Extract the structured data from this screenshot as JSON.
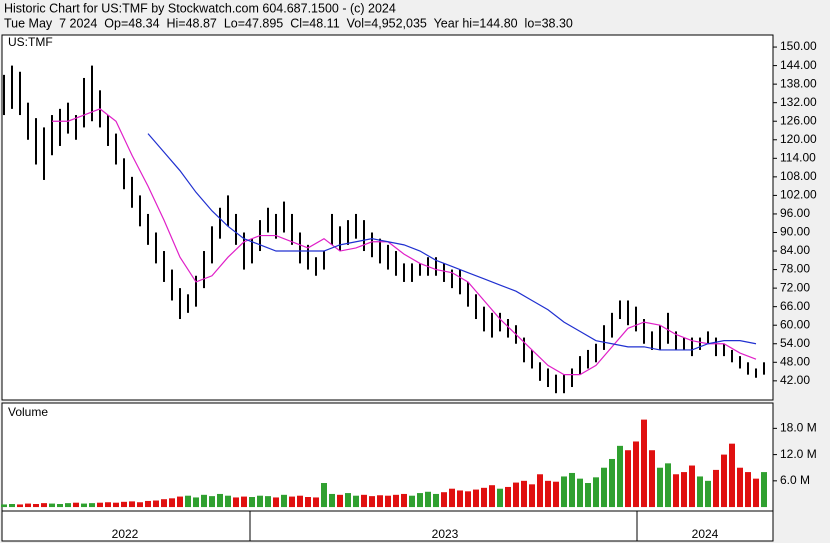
{
  "chart_data": {
    "type": "ohlc",
    "title": "Historic Chart for US:TMF by Stockwatch.com 604.687.1500 - (c) 2024",
    "subtitle": "Tue May  7 2024  Op=48.34  Hi=48.87  Lo=47.895  Cl=48.11  Vol=4,952,035  Year hi=144.80  lo=38.30",
    "symbol": "US:TMF",
    "volume_title": "Volume",
    "years": [
      "2022",
      "2023",
      "2024"
    ],
    "ylim": [
      35.8,
      153.9
    ],
    "yticks": [
      42,
      48,
      54,
      60,
      66,
      72,
      78,
      84,
      90,
      96,
      102,
      108,
      114,
      120,
      126,
      132,
      138,
      144,
      150
    ],
    "ytick_labels": [
      "42.00",
      "48.00",
      "54.00",
      "60.00",
      "66.00",
      "72.00",
      "78.00",
      "84.00",
      "90.00",
      "96.00",
      "102.00",
      "108.00",
      "114.00",
      "120.00",
      "126.00",
      "132.00",
      "138.00",
      "144.00",
      "150.00"
    ],
    "high": [
      141,
      144,
      142,
      132,
      127,
      124,
      128,
      130,
      132,
      128,
      140,
      144,
      136,
      128,
      122,
      114,
      108,
      102,
      96,
      90,
      84,
      78,
      72,
      70,
      76,
      84,
      92,
      98,
      102,
      96,
      90,
      88,
      94,
      98,
      96,
      100,
      96,
      90,
      86,
      82,
      84,
      96,
      92,
      94,
      96,
      94,
      90,
      88,
      86,
      84,
      80,
      80,
      80,
      82,
      82,
      80,
      78,
      78,
      74,
      70,
      66,
      64,
      64,
      62,
      60,
      56,
      52,
      48,
      46,
      44,
      44,
      46,
      50,
      52,
      54,
      60,
      64,
      68,
      68,
      66,
      62,
      58,
      60,
      64,
      58,
      56,
      56,
      56,
      58,
      56,
      54,
      52,
      50,
      48,
      46,
      48
    ],
    "low": [
      128,
      130,
      128,
      120,
      112,
      107,
      115,
      118,
      122,
      120,
      124,
      126,
      124,
      118,
      112,
      104,
      98,
      92,
      86,
      80,
      74,
      68,
      62,
      64,
      66,
      72,
      80,
      88,
      92,
      86,
      78,
      80,
      84,
      90,
      88,
      90,
      86,
      80,
      78,
      76,
      78,
      86,
      84,
      86,
      88,
      84,
      82,
      80,
      78,
      76,
      74,
      74,
      76,
      76,
      76,
      74,
      72,
      70,
      66,
      62,
      58,
      56,
      58,
      56,
      54,
      48,
      46,
      42,
      40,
      38,
      38,
      40,
      44,
      46,
      48,
      52,
      56,
      62,
      60,
      58,
      54,
      52,
      52,
      54,
      52,
      52,
      50,
      52,
      54,
      50,
      50,
      48,
      46,
      44,
      43,
      44
    ],
    "series": [
      {
        "name": "MA short",
        "color": "#e020c8",
        "values": [
          null,
          null,
          null,
          126,
          126,
          128,
          130,
          126,
          115,
          105,
          94,
          82,
          74,
          76,
          82,
          87,
          89,
          89,
          87,
          85,
          88,
          84,
          85,
          87,
          87,
          83,
          80,
          78,
          77,
          74,
          68,
          62,
          57,
          52,
          47,
          44,
          44,
          47,
          53,
          59,
          61,
          60,
          57,
          55,
          54,
          54,
          51,
          49
        ]
      },
      {
        "name": "MA long",
        "color": "#2030d0",
        "values": [
          null,
          null,
          null,
          null,
          null,
          null,
          null,
          null,
          null,
          122,
          116,
          110,
          103,
          97,
          92,
          88,
          86,
          84,
          84,
          84,
          84,
          86,
          87,
          88,
          87,
          86,
          84,
          81,
          79,
          77,
          75,
          73,
          71,
          68,
          65,
          61,
          58,
          55,
          54,
          53,
          53,
          52,
          52,
          52,
          54,
          55,
          55,
          54
        ]
      }
    ],
    "volume": [
      0.6,
      0.7,
      0.6,
      0.8,
      0.7,
      0.9,
      0.8,
      0.7,
      0.9,
      1.0,
      0.8,
      0.9,
      1.0,
      1.1,
      1.0,
      1.2,
      1.3,
      1.1,
      1.4,
      1.5,
      1.8,
      2.0,
      2.4,
      2.6,
      2.2,
      2.8,
      2.5,
      3.0,
      2.6,
      2.2,
      2.4,
      2.3,
      2.6,
      2.5,
      2.2,
      2.8,
      2.4,
      2.6,
      2.3,
      2.2,
      5.5,
      3.0,
      2.8,
      3.2,
      2.6,
      2.8,
      2.5,
      2.7,
      2.6,
      2.8,
      3.0,
      2.6,
      3.2,
      3.5,
      3.0,
      3.4,
      4.2,
      3.8,
      3.6,
      4.0,
      4.4,
      5.0,
      4.2,
      4.6,
      5.6,
      6.0,
      5.2,
      7.5,
      6.0,
      5.8,
      7.0,
      7.8,
      6.5,
      5.5,
      6.8,
      9.0,
      11.0,
      14.0,
      13.0,
      15.0,
      20.0,
      13.0,
      9.0,
      10.0,
      7.5,
      8.0,
      9.5,
      7.0,
      6.0,
      8.5,
      12.0,
      14.5,
      9.0,
      8.0,
      6.5,
      8.0
    ],
    "vlim": [
      -0.9,
      23.8
    ],
    "vticks": [
      {
        "value": 6,
        "label": "6.0 M"
      },
      {
        "value": 12,
        "label": "12.0 M"
      },
      {
        "value": 18,
        "label": "18.0 M"
      }
    ],
    "up_color": "#30a030",
    "down_color": "#e01010"
  }
}
